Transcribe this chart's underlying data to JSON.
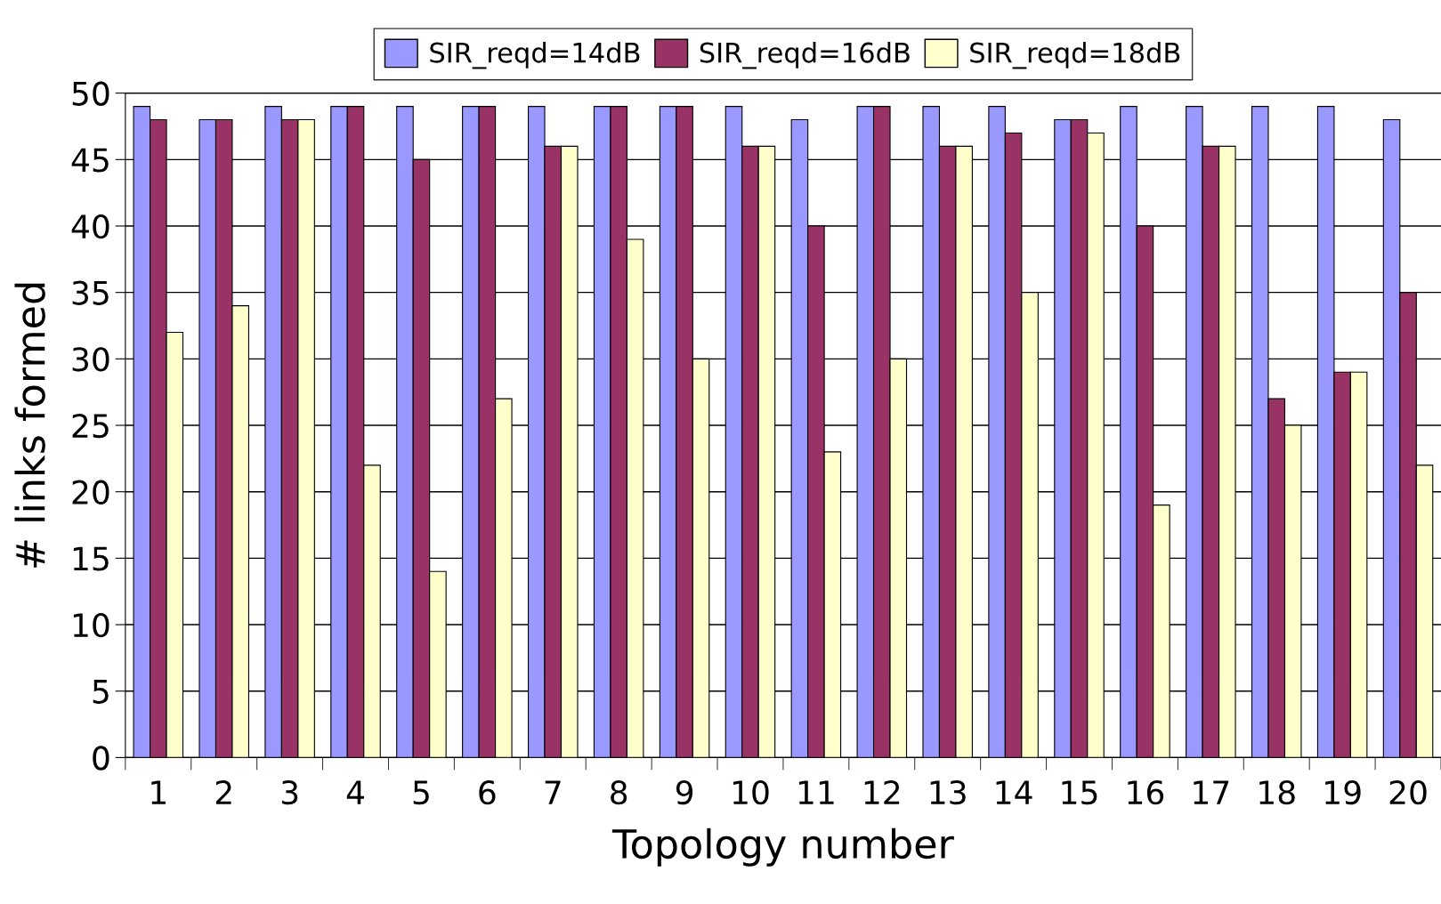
{
  "chart_data": {
    "type": "bar",
    "xlabel": "Topology number",
    "ylabel": "# links formed",
    "categories": [
      "1",
      "2",
      "3",
      "4",
      "5",
      "6",
      "7",
      "8",
      "9",
      "10",
      "11",
      "12",
      "13",
      "14",
      "15",
      "16",
      "17",
      "18",
      "19",
      "20"
    ],
    "series": [
      {
        "name": "SIR_reqd=14dB",
        "color": "#9999ff",
        "values": [
          49,
          48,
          49,
          49,
          49,
          49,
          49,
          49,
          49,
          49,
          48,
          49,
          49,
          49,
          48,
          49,
          49,
          49,
          49,
          48
        ]
      },
      {
        "name": "SIR_reqd=16dB",
        "color": "#993366",
        "values": [
          48,
          48,
          48,
          49,
          45,
          49,
          46,
          49,
          49,
          46,
          40,
          49,
          46,
          47,
          48,
          40,
          46,
          27,
          29,
          35
        ]
      },
      {
        "name": "SIR_reqd=18dB",
        "color": "#ffffcc",
        "values": [
          32,
          34,
          48,
          22,
          14,
          27,
          46,
          39,
          30,
          46,
          23,
          30,
          46,
          35,
          47,
          19,
          46,
          25,
          29,
          22
        ]
      }
    ],
    "ylim": [
      0,
      50
    ],
    "yticks": [
      0,
      5,
      10,
      15,
      20,
      25,
      30,
      35,
      40,
      45,
      50
    ],
    "grid": "y",
    "legend": "top"
  }
}
